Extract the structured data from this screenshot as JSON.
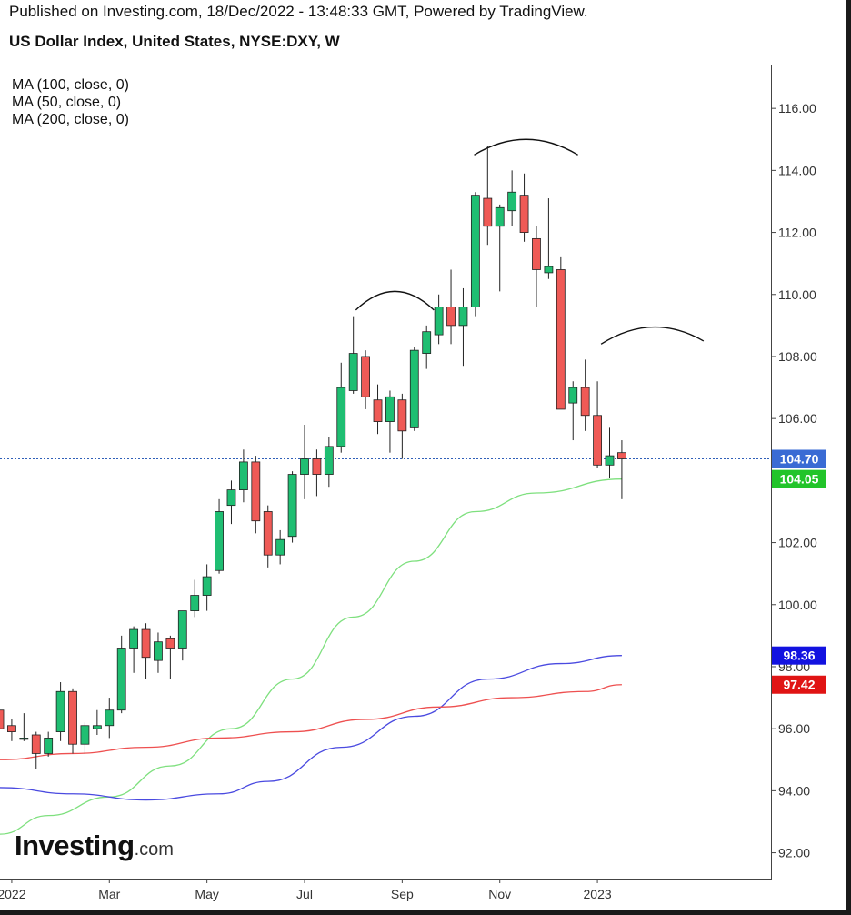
{
  "header": {
    "published": "Published on Investing.com, 18/Dec/2022 - 13:48:33 GMT, Powered by TradingView.",
    "title": "US Dollar Index, United States, NYSE:DXY, W"
  },
  "legend": [
    "MA (100, close, 0)",
    "MA (50, close, 0)",
    "MA (200, close, 0)"
  ],
  "logo": {
    "main": "Investing",
    "suffix": ".com"
  },
  "chart_data": {
    "type": "candlestick",
    "title": "US Dollar Index, United States, NYSE:DXY, W",
    "ylim": [
      91.2,
      117.3
    ],
    "y_ticks": [
      "116.00",
      "114.00",
      "112.00",
      "110.00",
      "108.00",
      "106.00",
      "102.00",
      "100.00",
      "98.00",
      "96.00",
      "94.00",
      "92.00"
    ],
    "x_labels": [
      "2022",
      "Mar",
      "May",
      "Jul",
      "Sep",
      "Nov",
      "2023"
    ],
    "x_label_weeks": [
      1,
      9,
      17,
      25,
      33,
      41,
      49
    ],
    "candles": [
      {
        "w": 0,
        "o": 96.6,
        "h": 96.8,
        "l": 95.8,
        "c": 96.0
      },
      {
        "w": 1,
        "o": 96.1,
        "h": 96.3,
        "l": 95.6,
        "c": 95.9
      },
      {
        "w": 2,
        "o": 95.7,
        "h": 96.5,
        "l": 95.6,
        "c": 95.7
      },
      {
        "w": 3,
        "o": 95.8,
        "h": 95.9,
        "l": 94.7,
        "c": 95.2
      },
      {
        "w": 4,
        "o": 95.2,
        "h": 95.9,
        "l": 95.1,
        "c": 95.7
      },
      {
        "w": 5,
        "o": 95.9,
        "h": 97.5,
        "l": 95.6,
        "c": 97.2
      },
      {
        "w": 6,
        "o": 97.2,
        "h": 97.3,
        "l": 95.2,
        "c": 95.5
      },
      {
        "w": 7,
        "o": 95.5,
        "h": 96.2,
        "l": 95.2,
        "c": 96.1
      },
      {
        "w": 8,
        "o": 96.0,
        "h": 96.6,
        "l": 95.8,
        "c": 96.1
      },
      {
        "w": 9,
        "o": 96.1,
        "h": 97.0,
        "l": 95.7,
        "c": 96.6
      },
      {
        "w": 10,
        "o": 96.6,
        "h": 99.0,
        "l": 96.5,
        "c": 98.6
      },
      {
        "w": 11,
        "o": 98.6,
        "h": 99.3,
        "l": 97.8,
        "c": 99.2
      },
      {
        "w": 12,
        "o": 99.2,
        "h": 99.4,
        "l": 97.6,
        "c": 98.3
      },
      {
        "w": 13,
        "o": 98.2,
        "h": 99.1,
        "l": 97.8,
        "c": 98.8
      },
      {
        "w": 14,
        "o": 98.9,
        "h": 99.0,
        "l": 97.6,
        "c": 98.6
      },
      {
        "w": 15,
        "o": 98.6,
        "h": 99.8,
        "l": 98.2,
        "c": 99.8
      },
      {
        "w": 16,
        "o": 99.8,
        "h": 100.8,
        "l": 99.6,
        "c": 100.3
      },
      {
        "w": 17,
        "o": 100.3,
        "h": 101.3,
        "l": 99.8,
        "c": 100.9
      },
      {
        "w": 18,
        "o": 101.1,
        "h": 103.4,
        "l": 101.0,
        "c": 103.0
      },
      {
        "w": 19,
        "o": 103.2,
        "h": 104.0,
        "l": 102.6,
        "c": 103.7
      },
      {
        "w": 20,
        "o": 103.7,
        "h": 105.0,
        "l": 103.3,
        "c": 104.6
      },
      {
        "w": 21,
        "o": 104.6,
        "h": 104.8,
        "l": 102.3,
        "c": 102.7
      },
      {
        "w": 22,
        "o": 103.0,
        "h": 103.2,
        "l": 101.2,
        "c": 101.6
      },
      {
        "w": 23,
        "o": 101.6,
        "h": 102.4,
        "l": 101.3,
        "c": 102.1
      },
      {
        "w": 24,
        "o": 102.2,
        "h": 104.3,
        "l": 102.0,
        "c": 104.2
      },
      {
        "w": 25,
        "o": 104.2,
        "h": 105.8,
        "l": 103.4,
        "c": 104.7
      },
      {
        "w": 26,
        "o": 104.7,
        "h": 105.0,
        "l": 103.5,
        "c": 104.2
      },
      {
        "w": 27,
        "o": 104.2,
        "h": 105.4,
        "l": 103.8,
        "c": 105.1
      },
      {
        "w": 28,
        "o": 105.1,
        "h": 107.8,
        "l": 104.9,
        "c": 107.0
      },
      {
        "w": 29,
        "o": 106.9,
        "h": 109.3,
        "l": 106.8,
        "c": 108.1
      },
      {
        "w": 30,
        "o": 108.0,
        "h": 108.2,
        "l": 106.3,
        "c": 106.7
      },
      {
        "w": 31,
        "o": 106.6,
        "h": 107.1,
        "l": 105.5,
        "c": 105.9
      },
      {
        "w": 32,
        "o": 105.9,
        "h": 106.9,
        "l": 104.9,
        "c": 106.7
      },
      {
        "w": 33,
        "o": 106.6,
        "h": 106.8,
        "l": 104.7,
        "c": 105.6
      },
      {
        "w": 34,
        "o": 105.7,
        "h": 108.3,
        "l": 105.6,
        "c": 108.2
      },
      {
        "w": 35,
        "o": 108.1,
        "h": 109.0,
        "l": 107.6,
        "c": 108.8
      },
      {
        "w": 36,
        "o": 108.7,
        "h": 110.0,
        "l": 108.4,
        "c": 109.6
      },
      {
        "w": 37,
        "o": 109.6,
        "h": 110.8,
        "l": 108.4,
        "c": 109.0
      },
      {
        "w": 38,
        "o": 109.0,
        "h": 110.2,
        "l": 107.7,
        "c": 109.6
      },
      {
        "w": 39,
        "o": 109.6,
        "h": 113.3,
        "l": 109.3,
        "c": 113.2
      },
      {
        "w": 40,
        "o": 113.1,
        "h": 114.8,
        "l": 111.6,
        "c": 112.2
      },
      {
        "w": 41,
        "o": 112.2,
        "h": 112.9,
        "l": 110.1,
        "c": 112.8
      },
      {
        "w": 42,
        "o": 112.7,
        "h": 114.0,
        "l": 112.2,
        "c": 113.3
      },
      {
        "w": 43,
        "o": 113.2,
        "h": 113.9,
        "l": 111.7,
        "c": 112.0
      },
      {
        "w": 44,
        "o": 111.8,
        "h": 112.2,
        "l": 109.6,
        "c": 110.8
      },
      {
        "w": 45,
        "o": 110.7,
        "h": 113.1,
        "l": 110.5,
        "c": 110.9
      },
      {
        "w": 46,
        "o": 110.8,
        "h": 111.2,
        "l": 106.3,
        "c": 106.3
      },
      {
        "w": 47,
        "o": 106.5,
        "h": 107.2,
        "l": 105.3,
        "c": 107.0
      },
      {
        "w": 48,
        "o": 107.0,
        "h": 107.9,
        "l": 105.6,
        "c": 106.1
      },
      {
        "w": 49,
        "o": 106.1,
        "h": 107.2,
        "l": 104.4,
        "c": 104.5
      },
      {
        "w": 50,
        "o": 104.5,
        "h": 105.7,
        "l": 104.1,
        "c": 104.8
      },
      {
        "w": 51,
        "o": 104.9,
        "h": 105.3,
        "l": 103.4,
        "c": 104.7
      }
    ],
    "series": [
      {
        "name": "MA (50, close, 0)",
        "color": "#7ee07e",
        "points": [
          [
            -2,
            92.6
          ],
          [
            4,
            93.2
          ],
          [
            9,
            93.8
          ],
          [
            14,
            94.8
          ],
          [
            19,
            96.0
          ],
          [
            24,
            97.6
          ],
          [
            29,
            99.6
          ],
          [
            34,
            101.4
          ],
          [
            39,
            103.0
          ],
          [
            44,
            103.6
          ],
          [
            51,
            104.05
          ]
        ]
      },
      {
        "name": "MA (100, close, 0)",
        "color": "#4a4ae0",
        "points": [
          [
            -2,
            94.1
          ],
          [
            6,
            93.9
          ],
          [
            12,
            93.7
          ],
          [
            18,
            93.9
          ],
          [
            22,
            94.3
          ],
          [
            28,
            95.4
          ],
          [
            34,
            96.4
          ],
          [
            40,
            97.6
          ],
          [
            46,
            98.1
          ],
          [
            51,
            98.36
          ]
        ]
      },
      {
        "name": "MA (200, close, 0)",
        "color": "#ee5050",
        "points": [
          [
            -2,
            95.0
          ],
          [
            6,
            95.2
          ],
          [
            12,
            95.4
          ],
          [
            18,
            95.7
          ],
          [
            24,
            95.9
          ],
          [
            30,
            96.3
          ],
          [
            36,
            96.7
          ],
          [
            42,
            97.0
          ],
          [
            48,
            97.2
          ],
          [
            51,
            97.42
          ]
        ]
      }
    ],
    "price_line": 104.7,
    "markers": [
      {
        "label": "104.70",
        "value": 104.7,
        "color": "#3a6bd4"
      },
      {
        "label": "104.05",
        "value": 104.05,
        "color": "#22c42a"
      },
      {
        "label": "98.36",
        "value": 98.36,
        "color": "#1212e0"
      },
      {
        "label": "97.42",
        "value": 97.42,
        "color": "#e01414"
      }
    ],
    "arcs": [
      {
        "from": [
          29.2,
          109.5
        ],
        "to": [
          35.6,
          109.5
        ],
        "peak": 110.1
      },
      {
        "from": [
          38.9,
          114.5
        ],
        "to": [
          47.4,
          114.5
        ],
        "peak": 115.0
      },
      {
        "from": [
          49.3,
          108.4
        ],
        "to": [
          57.7,
          108.5
        ],
        "peak": 108.95
      }
    ],
    "up_color": "#1fbe72",
    "down_color": "#ef5a56"
  }
}
